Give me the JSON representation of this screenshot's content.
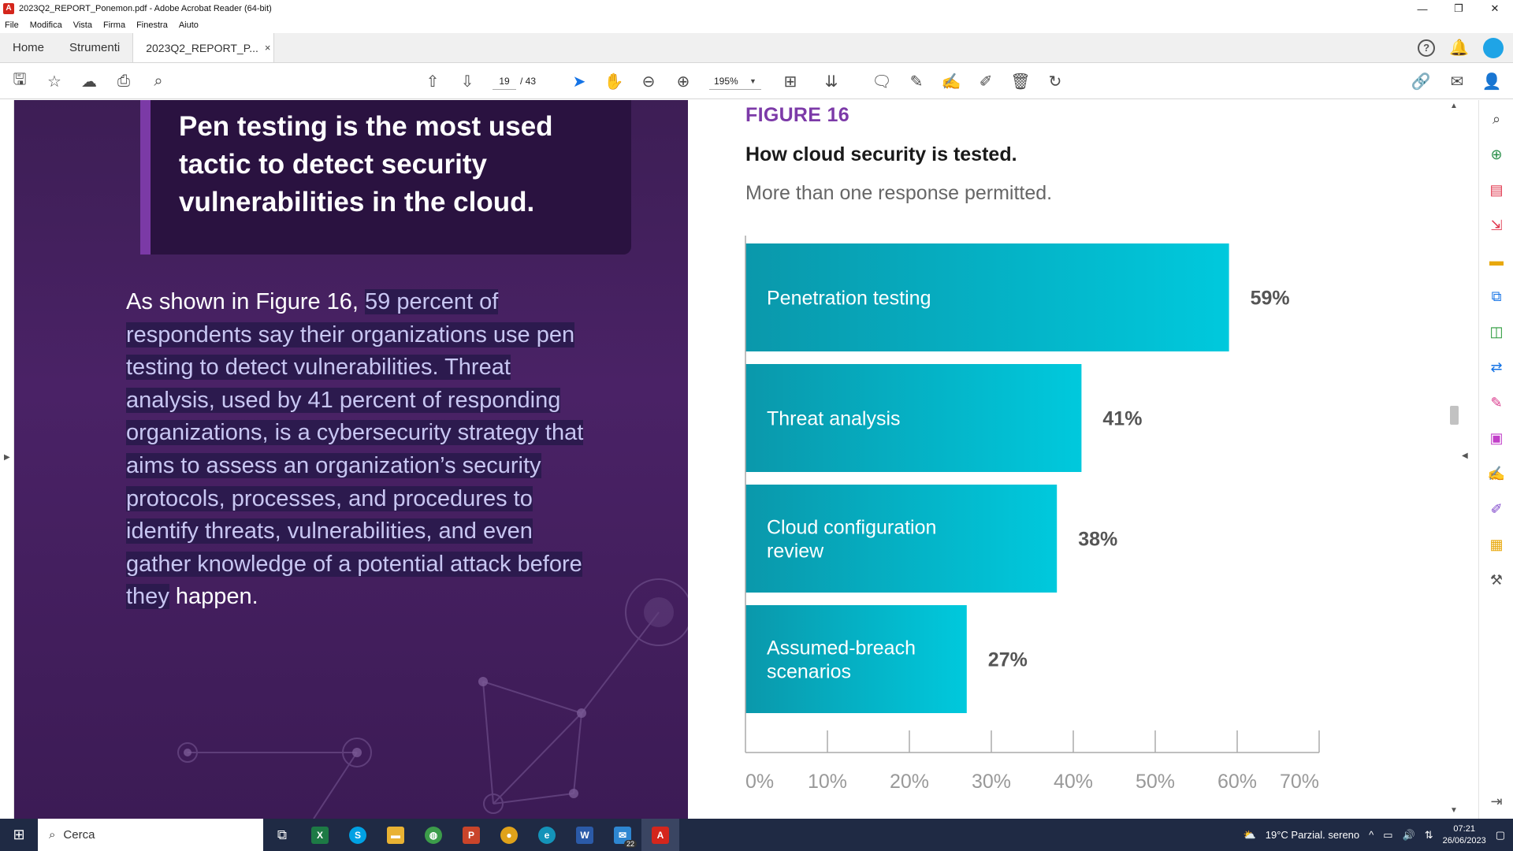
{
  "window": {
    "title": "2023Q2_REPORT_Ponemon.pdf - Adobe Acrobat Reader (64-bit)",
    "minimize": "—",
    "restore": "❐",
    "close": "✕"
  },
  "menu": [
    "File",
    "Modifica",
    "Vista",
    "Firma",
    "Finestra",
    "Aiuto"
  ],
  "tabs": {
    "home": "Home",
    "tools": "Strumenti",
    "document": "2023Q2_REPORT_P...",
    "close": "×",
    "help": "?"
  },
  "toolbar": {
    "page_current": "19",
    "page_total": "/ 43",
    "zoom": "195%"
  },
  "left_page": {
    "callout": "Pen testing is the most used tactic to detect security vulnerabilities in the cloud.",
    "body_plain": "As shown in Figure 16, ",
    "body_highlighted": "59 percent of respondents say their organizations use pen testing to detect vulnerabilities. Threat analysis, used by 41 percent of responding organizations, is a cybersecurity strategy that aims to assess an organization’s security protocols, processes, and procedures to identify threats, vulnerabilities, and even gather knowledge of a potential attack before they",
    "body_tail": " happen."
  },
  "figure": {
    "label": "FIGURE 16",
    "title": "How cloud security is tested.",
    "subtitle": "More than one response permitted."
  },
  "chart_data": {
    "type": "bar",
    "orientation": "horizontal",
    "title": "How cloud security is tested.",
    "subtitle": "More than one response permitted.",
    "categories": [
      "Penetration testing",
      "Threat analysis",
      "Cloud configuration review",
      "Assumed-breach scenarios"
    ],
    "category_lines": [
      [
        "Penetration testing"
      ],
      [
        "Threat analysis"
      ],
      [
        "Cloud configuration",
        "review"
      ],
      [
        "Assumed-breach",
        "scenarios"
      ]
    ],
    "values": [
      59,
      41,
      38,
      27
    ],
    "value_labels": [
      "59%",
      "41%",
      "38%",
      "27%"
    ],
    "xlim": [
      0,
      70
    ],
    "ticks": [
      0,
      10,
      20,
      30,
      40,
      50,
      60,
      70
    ],
    "tick_labels": [
      "0%",
      "10%",
      "20%",
      "30%",
      "40%",
      "50%",
      "60%",
      "70%"
    ],
    "bar_color_start": "#0a98ab",
    "bar_color_end": "#00c9dd",
    "grid": false
  },
  "taskbar": {
    "search_placeholder": "Cerca",
    "mail_badge": "22",
    "weather": "19°C  Parzial. sereno",
    "time": "07:21",
    "date": "26/06/2023"
  },
  "colors": {
    "accent": "#1473e6",
    "figure_purple": "#7c3aa8",
    "page_purple": "#4a2266",
    "taskbar": "#1f2a44"
  }
}
